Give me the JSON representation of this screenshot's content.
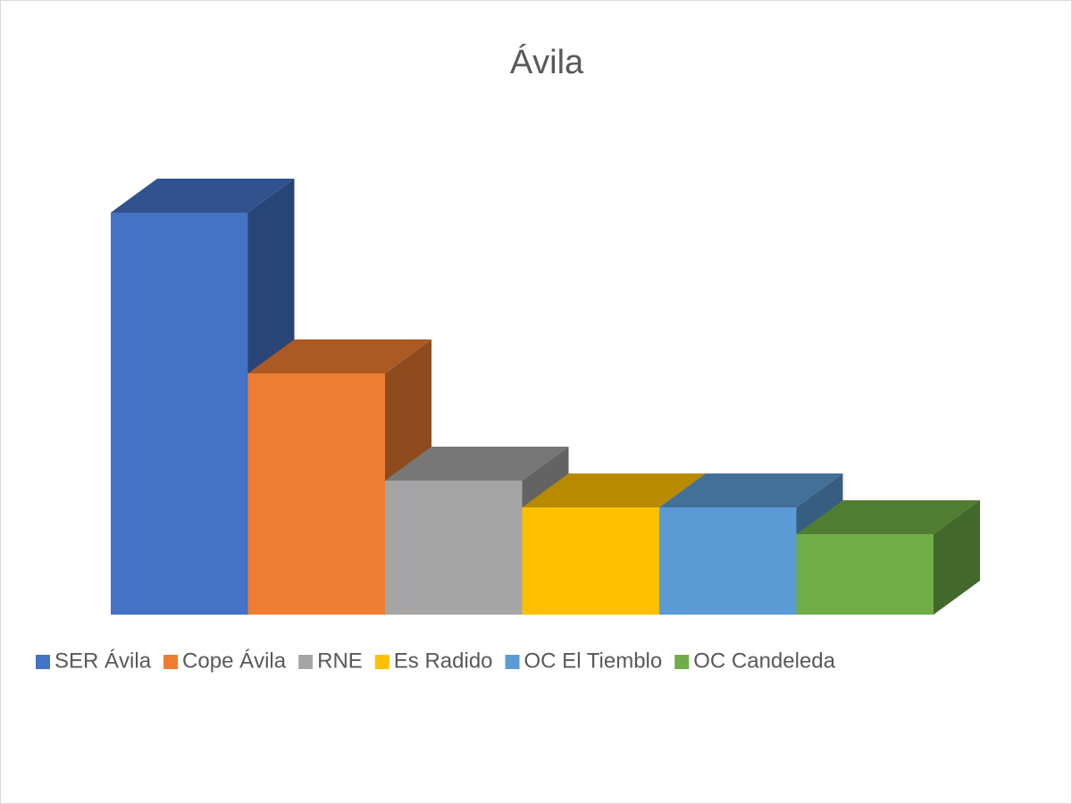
{
  "chart_data": {
    "type": "bar3d",
    "title": "Ávila",
    "series": [
      {
        "name": "SER Ávila",
        "color": "#4472c4",
        "values": [
          15
        ]
      },
      {
        "name": "Cope Ávila",
        "color": "#ed7d31",
        "values": [
          9
        ]
      },
      {
        "name": "RNE",
        "color": "#a5a5a5",
        "values": [
          5
        ]
      },
      {
        "name": "Es Radido",
        "color": "#ffc000",
        "values": [
          4
        ]
      },
      {
        "name": "OC El Tiemblo",
        "color": "#5b9bd5",
        "values": [
          4
        ]
      },
      {
        "name": "OC Candeleda",
        "color": "#70ad47",
        "values": [
          3
        ]
      }
    ]
  }
}
